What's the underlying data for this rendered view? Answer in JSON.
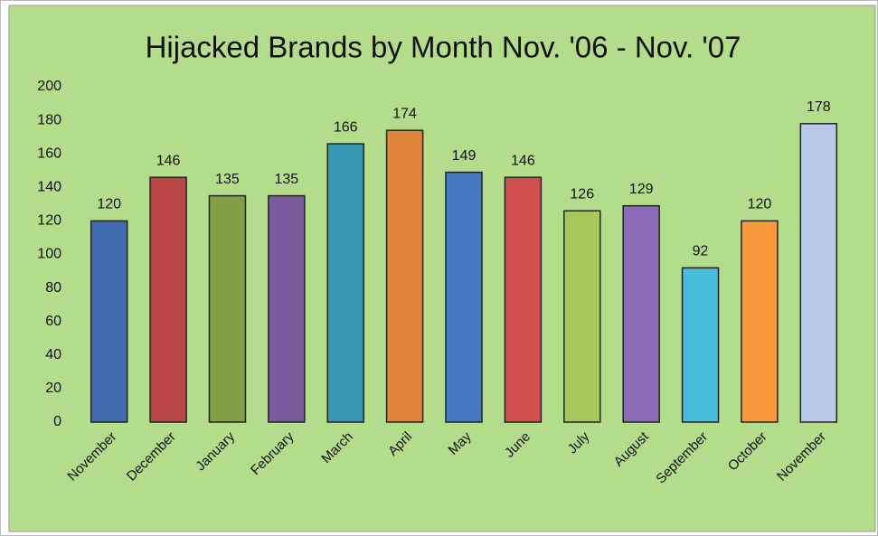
{
  "chart_data": {
    "type": "bar",
    "title": "Hijacked Brands by Month Nov. '06 - Nov. '07",
    "categories": [
      "November",
      "December",
      "January",
      "February",
      "March",
      "April",
      "May",
      "June",
      "July",
      "August",
      "September",
      "October",
      "November"
    ],
    "values": [
      120,
      146,
      135,
      135,
      166,
      174,
      149,
      146,
      126,
      129,
      92,
      120,
      178
    ],
    "colors": [
      "#3f6cae",
      "#b84745",
      "#84a047",
      "#775b9d",
      "#3897b3",
      "#e0843a",
      "#4479c2",
      "#d14f4c",
      "#a9c85c",
      "#8a6bb5",
      "#45bcd8",
      "#f8993c",
      "#b8cae8"
    ],
    "ylim": [
      0,
      200
    ],
    "yticks": [
      0,
      20,
      40,
      60,
      80,
      100,
      120,
      140,
      160,
      180,
      200
    ],
    "grid": false
  }
}
